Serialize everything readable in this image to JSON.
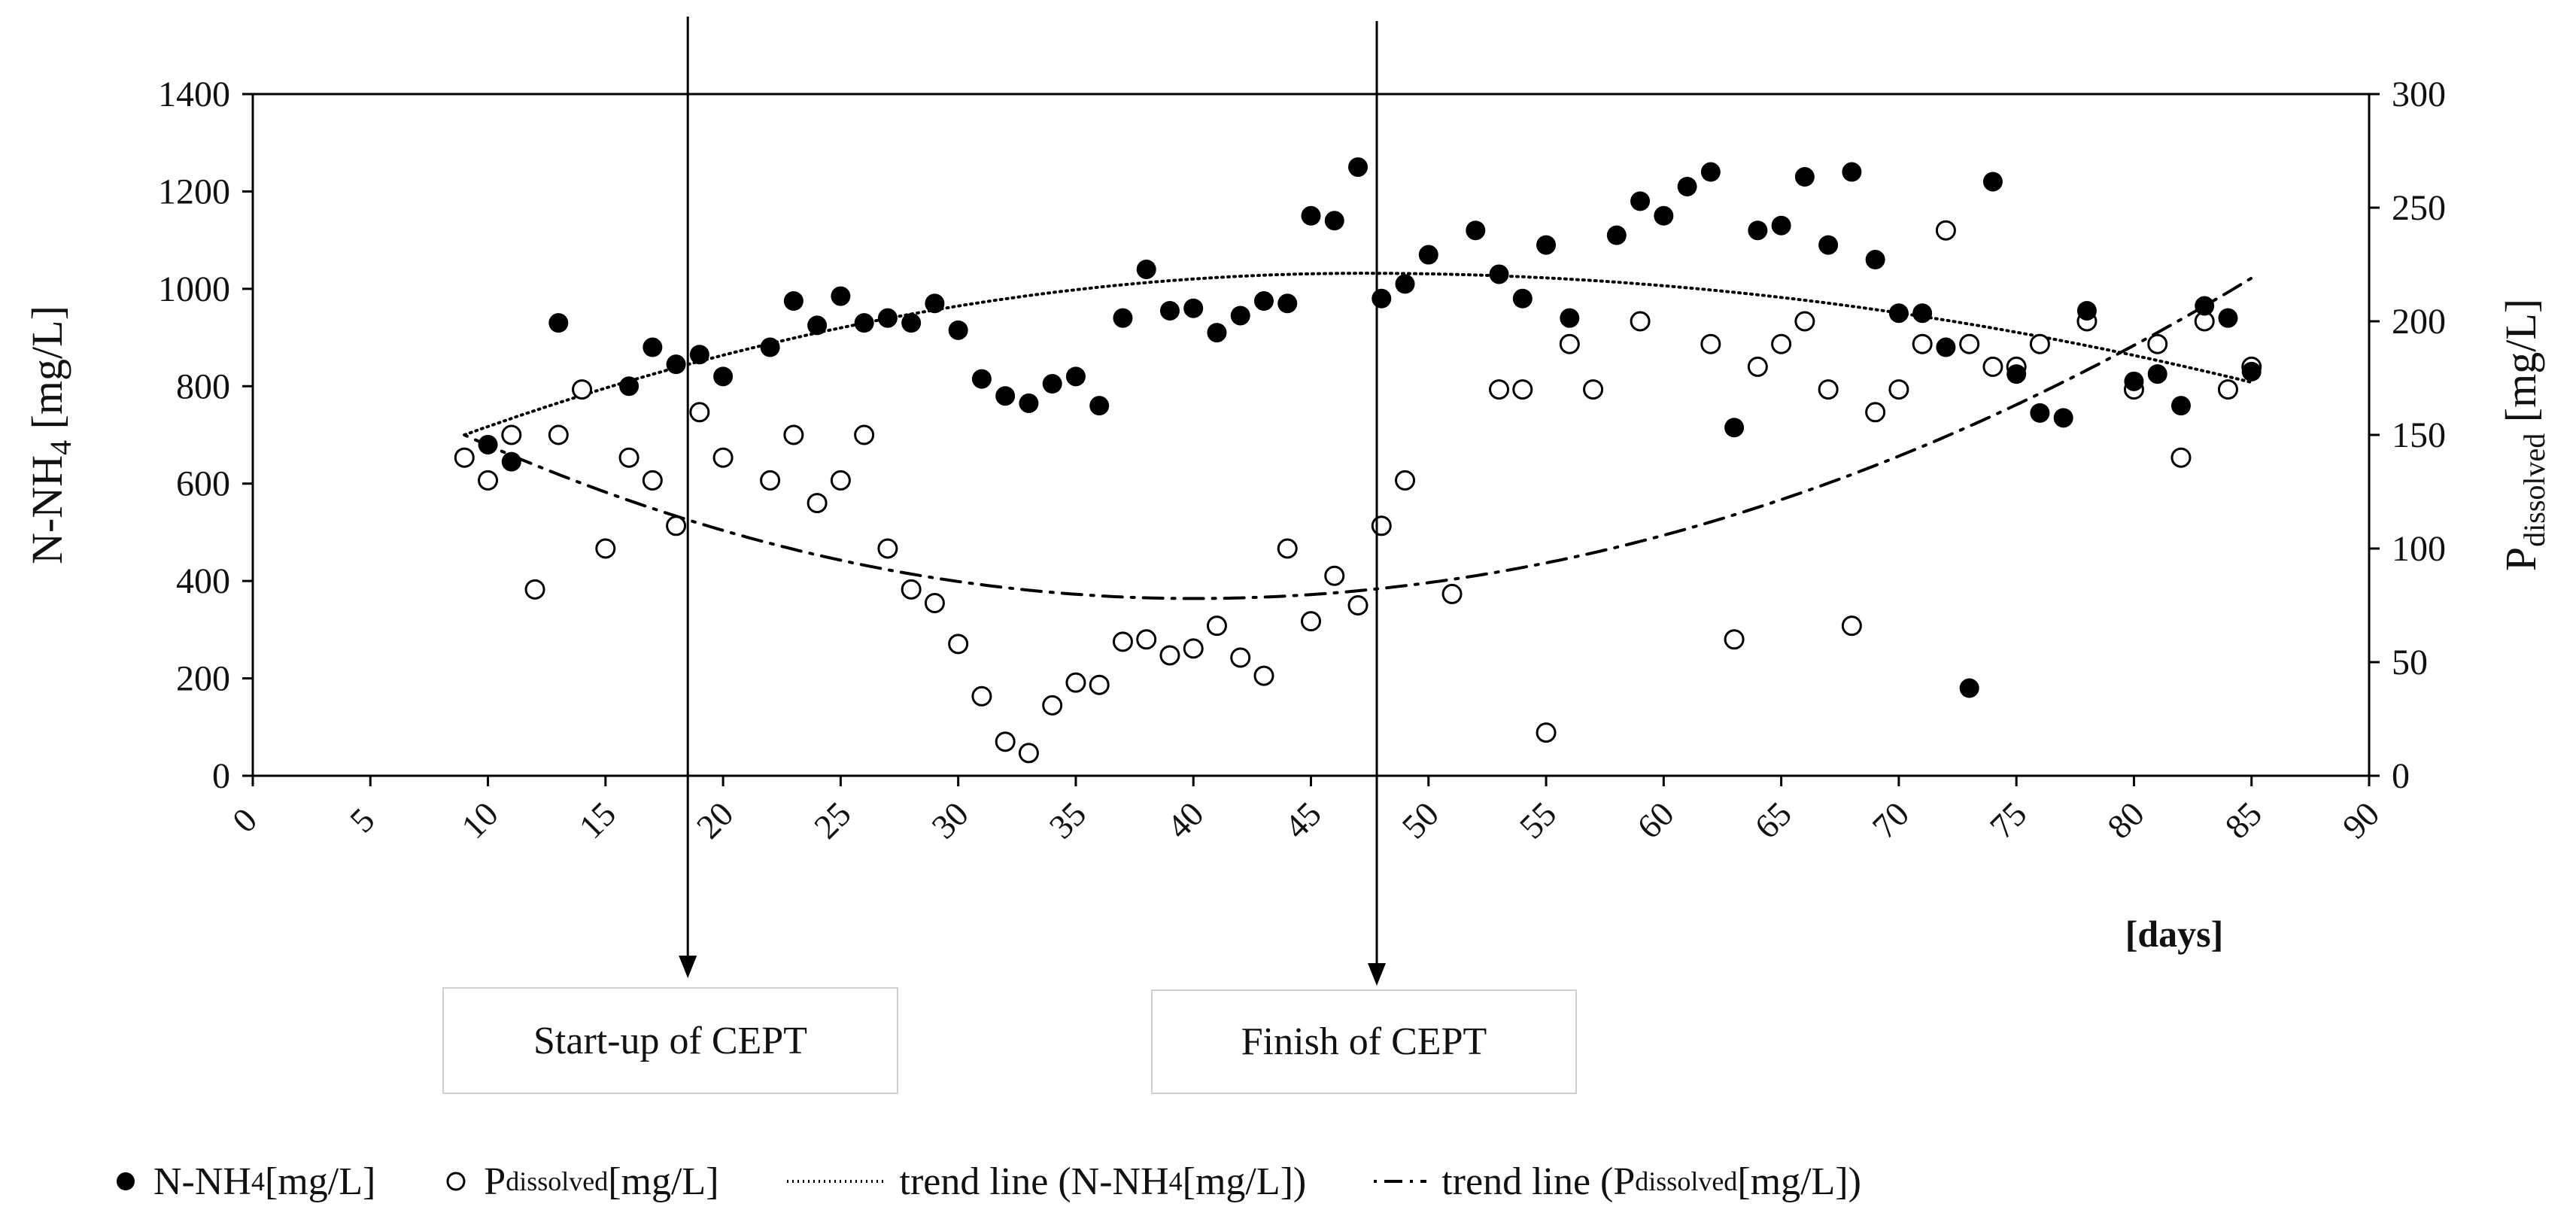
{
  "chart_data": {
    "type": "scatter",
    "xlabel": "[days]",
    "ylabel_left": {
      "main": "N-NH",
      "sub": "4",
      "unit": " [mg/L]"
    },
    "ylabel_right": {
      "main": "P",
      "sub": "dissolved",
      "unit": " [mg/L]"
    },
    "xlim": [
      0,
      90
    ],
    "ylim_left": [
      0,
      1400
    ],
    "ylim_right": [
      0,
      300
    ],
    "x_ticks": [
      "0",
      "5",
      "10",
      "15",
      "20",
      "25",
      "30",
      "35",
      "40",
      "45",
      "50",
      "55",
      "60",
      "65",
      "70",
      "75",
      "80",
      "85",
      "90"
    ],
    "y_left_ticks": [
      "0",
      "200",
      "400",
      "600",
      "800",
      "1000",
      "1200",
      "1400"
    ],
    "y_right_ticks": [
      "0",
      "50",
      "100",
      "150",
      "200",
      "250",
      "300"
    ],
    "series": [
      {
        "name": "N-NH4 [mg/L]",
        "axis": "left",
        "marker": "filled-circle",
        "x": [
          10,
          11,
          13,
          16,
          17,
          18,
          19,
          20,
          22,
          23,
          24,
          25,
          26,
          27,
          28,
          29,
          30,
          31,
          32,
          33,
          34,
          35,
          36,
          37,
          38,
          39,
          40,
          41,
          42,
          43,
          44,
          45,
          46,
          47,
          48,
          49,
          50,
          52,
          53,
          54,
          55,
          56,
          58,
          59,
          60,
          61,
          62,
          63,
          64,
          65,
          66,
          67,
          68,
          69,
          70,
          71,
          72,
          73,
          74,
          75,
          76,
          77,
          78,
          80,
          81,
          82,
          83,
          84,
          85
        ],
        "y": [
          680,
          645,
          930,
          800,
          880,
          845,
          865,
          820,
          880,
          975,
          925,
          985,
          930,
          940,
          930,
          970,
          915,
          815,
          780,
          765,
          805,
          820,
          760,
          940,
          1040,
          955,
          960,
          910,
          945,
          975,
          970,
          1150,
          1140,
          1250,
          980,
          1010,
          1070,
          1120,
          1030,
          980,
          1090,
          940,
          1110,
          1180,
          1150,
          1210,
          1240,
          715,
          1120,
          1130,
          1230,
          1090,
          1240,
          1060,
          950,
          950,
          880,
          180,
          1220,
          825,
          745,
          735,
          955,
          810,
          825,
          760,
          965,
          940,
          830
        ]
      },
      {
        "name": "P dissolved [mg/L]",
        "axis": "right",
        "marker": "open-circle",
        "x": [
          9,
          10,
          11,
          12,
          13,
          14,
          15,
          16,
          17,
          18,
          19,
          20,
          22,
          23,
          24,
          25,
          26,
          27,
          28,
          29,
          30,
          31,
          32,
          33,
          34,
          35,
          36,
          37,
          38,
          39,
          40,
          41,
          42,
          43,
          44,
          45,
          46,
          47,
          48,
          49,
          51,
          53,
          54,
          55,
          56,
          57,
          59,
          62,
          63,
          64,
          65,
          66,
          67,
          68,
          69,
          70,
          71,
          72,
          73,
          74,
          75,
          76,
          78,
          80,
          81,
          82,
          83,
          84,
          85
        ],
        "y": [
          140,
          130,
          150,
          82,
          150,
          170,
          100,
          140,
          130,
          110,
          160,
          140,
          130,
          150,
          120,
          130,
          150,
          100,
          82,
          76,
          58,
          35,
          15,
          10,
          31,
          41,
          40,
          59,
          60,
          53,
          56,
          66,
          52,
          44,
          100,
          68,
          88,
          75,
          110,
          130,
          80,
          170,
          170,
          19,
          190,
          170,
          200,
          190,
          60,
          180,
          190,
          200,
          170,
          66,
          160,
          170,
          190,
          240,
          190,
          180,
          180,
          190,
          200,
          170,
          190,
          140,
          200,
          170,
          180
        ]
      }
    ],
    "trend_lines": [
      {
        "name": "trend line (N-NH4 [mg/L])",
        "axis": "left",
        "style": "dotted",
        "type": "poly2",
        "x_range": [
          9,
          85
        ],
        "y_start": 700,
        "peak_x": 47.2,
        "peak_y": 1032,
        "y_end": 808
      },
      {
        "name": "trend line (P dissolved [mg/L])",
        "axis": "right",
        "style": "dash-dot",
        "type": "poly2",
        "x_range": [
          9,
          85
        ],
        "y_start": 150,
        "min_x": 40,
        "min_y": 78,
        "y_end": 219
      }
    ],
    "annotations": [
      {
        "label": "Start-up of CEPT",
        "x": 18.5
      },
      {
        "label": "Finish of CEPT",
        "x": 47.8
      }
    ],
    "legend": {
      "position": "bottom",
      "items": [
        {
          "symbol": "●",
          "text": "N-NH",
          "sub": "4",
          "tail": " [mg/L]"
        },
        {
          "symbol": "○",
          "text": "P",
          "sub": "dissolved",
          "tail": " [mg/L]"
        },
        {
          "symbol": "dotted-line",
          "text": "trend line  (N-NH",
          "sub": "4",
          "tail": " [mg/L])"
        },
        {
          "symbol": "dashdot-line",
          "text": "trend line  (P",
          "sub": "dissolved",
          "tail": " [mg/L])"
        }
      ]
    }
  }
}
